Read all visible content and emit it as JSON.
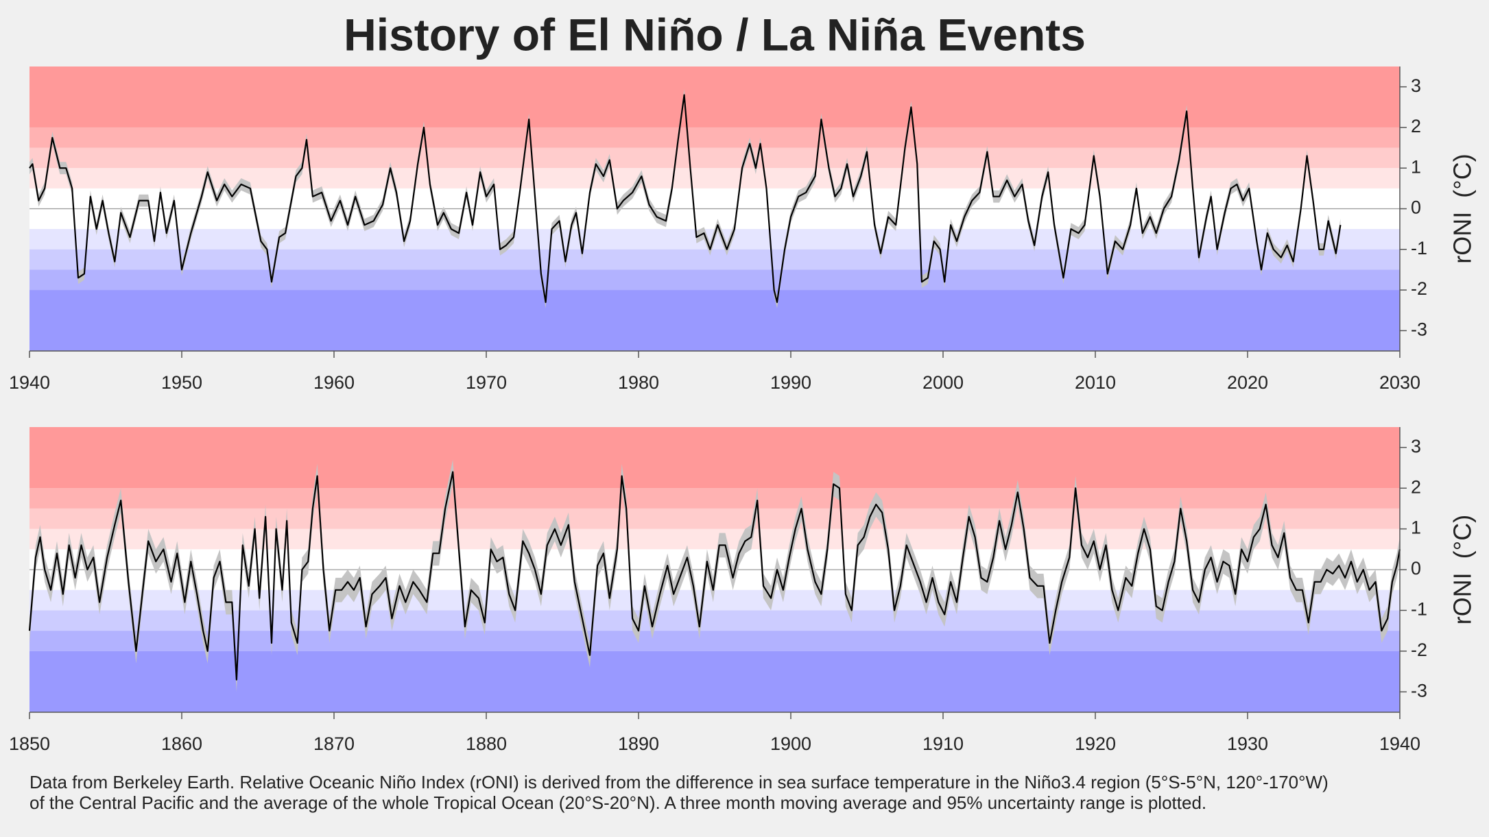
{
  "title": "History of El Niño / La Niña Events",
  "footnote": [
    "Data from Berkeley Earth.  Relative Oceanic Niño Index (rONI) is derived from the difference in sea surface temperature in the Niño3.4 region (5°S-5°N, 120°-170°W)",
    "of the Central Pacific and the average of the whole Tropical Ocean (20°S-20°N).  A three month moving average and 95% uncertainty range is plotted."
  ],
  "chart_data": [
    {
      "type": "line",
      "y_label": "rONI  (°C)",
      "color": "#000000",
      "band_color": "#c4c4c4",
      "uncertainty": 0.15,
      "xlim": [
        1940,
        2030
      ],
      "xticks": [
        1940,
        1950,
        1960,
        1970,
        1980,
        1990,
        2000,
        2010,
        2020,
        2030
      ],
      "ylim": [
        -3.5,
        3.5
      ],
      "yticks": [
        -3,
        -2,
        -1,
        0,
        1,
        2,
        3
      ],
      "bands": [
        {
          "from": 2,
          "to": 3.5,
          "color": "#ff9999"
        },
        {
          "from": 1.5,
          "to": 2,
          "color": "#ffb2b2"
        },
        {
          "from": 1,
          "to": 1.5,
          "color": "#ffcccc"
        },
        {
          "from": 0.5,
          "to": 1,
          "color": "#ffe5e5"
        },
        {
          "from": -0.5,
          "to": 0.5,
          "color": "#ffffff"
        },
        {
          "from": -1,
          "to": -0.5,
          "color": "#e5e5ff"
        },
        {
          "from": -1.5,
          "to": -1,
          "color": "#ccccff"
        },
        {
          "from": -2,
          "to": -1.5,
          "color": "#b2b2ff"
        },
        {
          "from": -3.5,
          "to": -2,
          "color": "#9999ff"
        }
      ],
      "x": [
        1940.0,
        1940.2,
        1940.6,
        1941.0,
        1941.5,
        1942.0,
        1942.4,
        1942.8,
        1943.2,
        1943.6,
        1944.0,
        1944.4,
        1944.8,
        1945.2,
        1945.6,
        1946.0,
        1946.6,
        1947.2,
        1947.8,
        1948.2,
        1948.6,
        1949.0,
        1949.5,
        1950.0,
        1950.6,
        1951.3,
        1951.7,
        1952.3,
        1952.8,
        1953.3,
        1953.9,
        1954.5,
        1955.2,
        1955.6,
        1955.9,
        1956.4,
        1956.8,
        1957.5,
        1957.9,
        1958.2,
        1958.6,
        1959.2,
        1959.8,
        1960.4,
        1960.9,
        1961.4,
        1962.0,
        1962.6,
        1963.2,
        1963.7,
        1964.1,
        1964.6,
        1965.0,
        1965.5,
        1965.9,
        1966.3,
        1966.8,
        1967.2,
        1967.7,
        1968.2,
        1968.7,
        1969.1,
        1969.6,
        1970.0,
        1970.5,
        1970.9,
        1971.3,
        1971.8,
        1972.2,
        1972.8,
        1973.2,
        1973.6,
        1973.9,
        1974.3,
        1974.8,
        1975.2,
        1975.6,
        1975.9,
        1976.3,
        1976.8,
        1977.2,
        1977.7,
        1978.1,
        1978.6,
        1979.0,
        1979.6,
        1980.2,
        1980.7,
        1981.2,
        1981.8,
        1982.2,
        1982.6,
        1983.0,
        1983.4,
        1983.8,
        1984.3,
        1984.7,
        1985.2,
        1985.8,
        1986.3,
        1986.8,
        1987.3,
        1987.7,
        1988.0,
        1988.4,
        1988.9,
        1989.1,
        1989.6,
        1990.0,
        1990.5,
        1991.0,
        1991.6,
        1992.0,
        1992.5,
        1992.9,
        1993.3,
        1993.7,
        1994.1,
        1994.6,
        1995.0,
        1995.5,
        1995.9,
        1996.4,
        1996.9,
        1997.5,
        1997.9,
        1998.3,
        1998.6,
        1999.0,
        1999.4,
        1999.8,
        2000.1,
        2000.5,
        2000.9,
        2001.4,
        2001.9,
        2002.4,
        2002.9,
        2003.3,
        2003.7,
        2004.2,
        2004.7,
        2005.2,
        2005.6,
        2006.0,
        2006.5,
        2006.9,
        2007.3,
        2007.9,
        2008.4,
        2008.9,
        2009.3,
        2009.9,
        2010.3,
        2010.8,
        2011.3,
        2011.8,
        2012.3,
        2012.7,
        2013.1,
        2013.6,
        2014.0,
        2014.5,
        2015.0,
        2015.5,
        2016.0,
        2016.4,
        2016.8,
        2017.3,
        2017.6,
        2018.0,
        2018.5,
        2018.9,
        2019.3,
        2019.7,
        2020.1,
        2020.6,
        2020.9,
        2021.3,
        2021.7,
        2022.2,
        2022.6,
        2023.0,
        2023.5,
        2023.9,
        2024.3,
        2024.7,
        2025.0,
        2025.3,
        2025.8,
        2026.1
      ],
      "values": [
        1.0,
        1.1,
        0.2,
        0.5,
        1.75,
        1.0,
        1.0,
        0.5,
        -1.7,
        -1.6,
        0.3,
        -0.5,
        0.2,
        -0.6,
        -1.3,
        -0.1,
        -0.7,
        0.2,
        0.2,
        -0.8,
        0.4,
        -0.6,
        0.2,
        -1.5,
        -0.6,
        0.3,
        0.9,
        0.2,
        0.6,
        0.3,
        0.6,
        0.5,
        -0.8,
        -1.0,
        -1.8,
        -0.7,
        -0.6,
        0.8,
        1.0,
        1.7,
        0.3,
        0.4,
        -0.3,
        0.2,
        -0.4,
        0.3,
        -0.4,
        -0.3,
        0.1,
        1.0,
        0.4,
        -0.8,
        -0.3,
        1.1,
        2.0,
        0.6,
        -0.4,
        -0.1,
        -0.5,
        -0.6,
        0.4,
        -0.4,
        0.9,
        0.3,
        0.6,
        -1.0,
        -0.9,
        -0.7,
        0.4,
        2.2,
        0.3,
        -1.6,
        -2.3,
        -0.5,
        -0.3,
        -1.3,
        -0.4,
        -0.1,
        -1.1,
        0.4,
        1.1,
        0.8,
        1.2,
        0.0,
        0.2,
        0.4,
        0.8,
        0.1,
        -0.2,
        -0.3,
        0.5,
        1.7,
        2.8,
        1.0,
        -0.7,
        -0.6,
        -1.0,
        -0.4,
        -1.0,
        -0.5,
        1.0,
        1.6,
        1.0,
        1.6,
        0.5,
        -2.0,
        -2.3,
        -1.0,
        -0.2,
        0.3,
        0.4,
        0.8,
        2.2,
        1.0,
        0.3,
        0.5,
        1.1,
        0.3,
        0.8,
        1.4,
        -0.4,
        -1.1,
        -0.2,
        -0.4,
        1.5,
        2.5,
        1.1,
        -1.8,
        -1.7,
        -0.8,
        -1.0,
        -1.8,
        -0.4,
        -0.8,
        -0.2,
        0.2,
        0.4,
        1.4,
        0.3,
        0.3,
        0.7,
        0.3,
        0.6,
        -0.3,
        -0.9,
        0.3,
        0.9,
        -0.4,
        -1.7,
        -0.5,
        -0.6,
        -0.4,
        1.3,
        0.3,
        -1.6,
        -0.8,
        -1.0,
        -0.4,
        0.5,
        -0.6,
        -0.2,
        -0.6,
        0.0,
        0.3,
        1.2,
        2.4,
        0.5,
        -1.2,
        -0.2,
        0.3,
        -1.0,
        -0.1,
        0.5,
        0.6,
        0.2,
        0.5,
        -0.8,
        -1.5,
        -0.6,
        -1.0,
        -1.2,
        -0.9,
        -1.3,
        0.0,
        1.3,
        0.2,
        -1.0,
        -1.0,
        -0.3,
        -1.1,
        -0.4
      ]
    },
    {
      "type": "line",
      "y_label": "rONI  (°C)",
      "color": "#000000",
      "band_color": "#c4c4c4",
      "uncertainty": 0.3,
      "xlim": [
        1850,
        1940
      ],
      "xticks": [
        1850,
        1860,
        1870,
        1880,
        1890,
        1900,
        1910,
        1920,
        1930,
        1940
      ],
      "ylim": [
        -3.5,
        3.5
      ],
      "yticks": [
        -3,
        -2,
        -1,
        0,
        1,
        2,
        3
      ],
      "bands": [
        {
          "from": 2,
          "to": 3.5,
          "color": "#ff9999"
        },
        {
          "from": 1.5,
          "to": 2,
          "color": "#ffb2b2"
        },
        {
          "from": 1,
          "to": 1.5,
          "color": "#ffcccc"
        },
        {
          "from": 0.5,
          "to": 1,
          "color": "#ffe5e5"
        },
        {
          "from": -0.5,
          "to": 0.5,
          "color": "#ffffff"
        },
        {
          "from": -1,
          "to": -0.5,
          "color": "#e5e5ff"
        },
        {
          "from": -1.5,
          "to": -1,
          "color": "#ccccff"
        },
        {
          "from": -2,
          "to": -1.5,
          "color": "#b2b2ff"
        },
        {
          "from": -3.5,
          "to": -2,
          "color": "#9999ff"
        }
      ],
      "x": [
        1850.0,
        1850.4,
        1850.7,
        1851.0,
        1851.4,
        1851.8,
        1852.2,
        1852.6,
        1853.0,
        1853.4,
        1853.8,
        1854.2,
        1854.6,
        1855.1,
        1855.6,
        1856.0,
        1856.5,
        1857.0,
        1857.5,
        1857.8,
        1858.3,
        1858.8,
        1859.3,
        1859.7,
        1860.2,
        1860.6,
        1861.0,
        1861.4,
        1861.7,
        1862.1,
        1862.5,
        1862.9,
        1863.3,
        1863.6,
        1864.0,
        1864.4,
        1864.8,
        1865.1,
        1865.5,
        1865.9,
        1866.2,
        1866.6,
        1866.9,
        1867.2,
        1867.6,
        1867.9,
        1868.3,
        1868.6,
        1868.9,
        1869.3,
        1869.7,
        1870.1,
        1870.5,
        1870.9,
        1871.3,
        1871.7,
        1872.1,
        1872.5,
        1873.0,
        1873.4,
        1873.8,
        1874.3,
        1874.7,
        1875.2,
        1875.6,
        1876.1,
        1876.5,
        1876.9,
        1877.3,
        1877.8,
        1878.2,
        1878.6,
        1879.0,
        1879.5,
        1879.9,
        1880.3,
        1880.7,
        1881.1,
        1881.5,
        1881.9,
        1882.4,
        1882.8,
        1883.2,
        1883.6,
        1884.0,
        1884.5,
        1884.9,
        1885.4,
        1885.8,
        1886.3,
        1886.8,
        1887.3,
        1887.7,
        1888.1,
        1888.6,
        1888.9,
        1889.2,
        1889.6,
        1890.0,
        1890.4,
        1890.9,
        1891.4,
        1891.9,
        1892.3,
        1892.8,
        1893.2,
        1893.6,
        1894.0,
        1894.5,
        1894.9,
        1895.3,
        1895.7,
        1896.2,
        1896.6,
        1897.0,
        1897.4,
        1897.8,
        1898.2,
        1898.7,
        1899.1,
        1899.5,
        1899.9,
        1900.3,
        1900.7,
        1901.1,
        1901.6,
        1902.0,
        1902.4,
        1902.8,
        1903.2,
        1903.6,
        1904.0,
        1904.4,
        1904.8,
        1905.2,
        1905.6,
        1906.0,
        1906.4,
        1906.8,
        1907.2,
        1907.6,
        1908.0,
        1908.5,
        1908.9,
        1909.3,
        1909.7,
        1910.1,
        1910.5,
        1910.9,
        1911.3,
        1911.7,
        1912.1,
        1912.5,
        1912.9,
        1913.3,
        1913.7,
        1914.1,
        1914.5,
        1914.9,
        1915.3,
        1915.7,
        1916.2,
        1916.6,
        1917.0,
        1917.4,
        1917.8,
        1918.3,
        1918.7,
        1919.1,
        1919.5,
        1919.9,
        1920.3,
        1920.7,
        1921.1,
        1921.5,
        1922.0,
        1922.4,
        1922.8,
        1923.2,
        1923.6,
        1924.0,
        1924.4,
        1924.8,
        1925.2,
        1925.6,
        1926.0,
        1926.4,
        1926.8,
        1927.2,
        1927.6,
        1928.0,
        1928.4,
        1928.8,
        1929.2,
        1929.6,
        1930.0,
        1930.4,
        1930.8,
        1931.2,
        1931.6,
        1932.0,
        1932.4,
        1932.8,
        1933.2,
        1933.6,
        1934.0,
        1934.4,
        1934.8,
        1935.2,
        1935.6,
        1936.0,
        1936.4,
        1936.8,
        1937.2,
        1937.6,
        1938.0,
        1938.4,
        1938.8,
        1939.2,
        1939.5,
        1939.8,
        1940.0
      ],
      "values": [
        -1.5,
        0.3,
        0.8,
        0.0,
        -0.5,
        0.4,
        -0.6,
        0.6,
        -0.2,
        0.6,
        0.0,
        0.3,
        -0.8,
        0.3,
        1.1,
        1.7,
        -0.3,
        -2.0,
        -0.3,
        0.7,
        0.2,
        0.5,
        -0.3,
        0.4,
        -0.8,
        0.2,
        -0.6,
        -1.5,
        -2.0,
        -0.2,
        0.2,
        -0.8,
        -0.8,
        -2.7,
        0.6,
        -0.4,
        1.0,
        -0.7,
        1.3,
        -1.8,
        1.0,
        -0.5,
        1.2,
        -1.3,
        -1.8,
        0.0,
        0.2,
        1.5,
        2.3,
        0.0,
        -1.5,
        -0.5,
        -0.5,
        -0.3,
        -0.5,
        -0.2,
        -1.4,
        -0.6,
        -0.4,
        -0.2,
        -1.2,
        -0.4,
        -0.8,
        -0.3,
        -0.5,
        -0.8,
        0.4,
        0.4,
        1.5,
        2.4,
        0.5,
        -1.4,
        -0.5,
        -0.7,
        -1.3,
        0.5,
        0.2,
        0.3,
        -0.6,
        -1.0,
        0.7,
        0.4,
        0.0,
        -0.6,
        0.6,
        1.0,
        0.6,
        1.1,
        -0.3,
        -1.2,
        -2.1,
        0.1,
        0.4,
        -0.7,
        0.5,
        2.3,
        1.5,
        -1.2,
        -1.5,
        -0.4,
        -1.4,
        -0.6,
        0.1,
        -0.6,
        -0.1,
        0.3,
        -0.4,
        -1.4,
        0.2,
        -0.5,
        0.6,
        0.6,
        -0.2,
        0.4,
        0.7,
        0.8,
        1.7,
        -0.4,
        -0.7,
        0.0,
        -0.5,
        0.3,
        1.0,
        1.5,
        0.5,
        -0.3,
        -0.6,
        0.5,
        2.1,
        2.0,
        -0.6,
        -1.0,
        0.6,
        0.8,
        1.3,
        1.6,
        1.4,
        0.5,
        -1.0,
        -0.4,
        0.6,
        0.2,
        -0.3,
        -0.8,
        -0.2,
        -0.8,
        -1.1,
        -0.3,
        -0.8,
        0.3,
        1.3,
        0.8,
        -0.2,
        -0.3,
        0.3,
        1.2,
        0.5,
        1.1,
        1.9,
        1.0,
        -0.2,
        -0.4,
        -0.4,
        -1.8,
        -1.0,
        -0.3,
        0.3,
        2.0,
        0.6,
        0.3,
        0.7,
        0.0,
        0.6,
        -0.5,
        -1.0,
        -0.2,
        -0.4,
        0.4,
        1.0,
        0.5,
        -0.9,
        -1.0,
        -0.3,
        0.2,
        1.5,
        0.7,
        -0.5,
        -0.8,
        0.0,
        0.3,
        -0.3,
        0.2,
        0.1,
        -0.6,
        0.5,
        0.2,
        0.8,
        1.0,
        1.6,
        0.6,
        0.3,
        0.9,
        -0.2,
        -0.5,
        -0.5,
        -1.3,
        -0.3,
        -0.3,
        0.0,
        -0.1,
        0.1,
        -0.2,
        0.2,
        -0.3,
        0.0,
        -0.5,
        -0.3,
        -1.5,
        -1.2,
        -0.3,
        0.1,
        0.5
      ]
    }
  ]
}
